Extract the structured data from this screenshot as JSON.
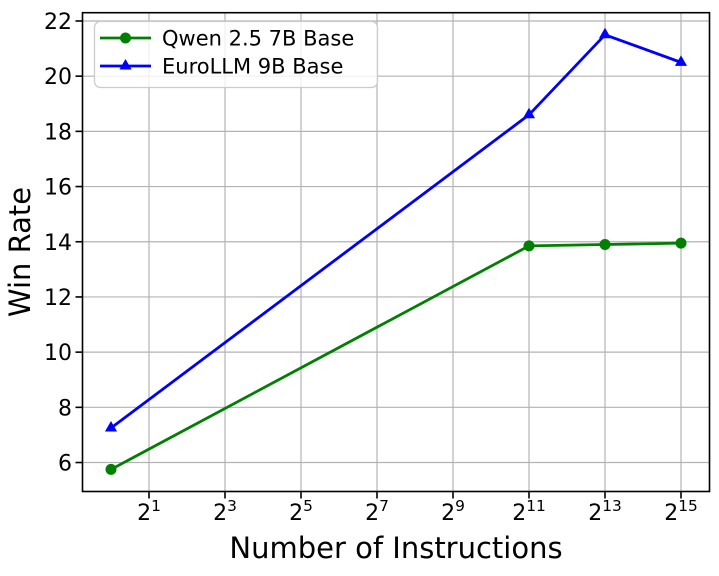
{
  "colors": {
    "background": "#ffffff",
    "grid": "#b3b3b3",
    "spine": "#000000",
    "text": "#000000",
    "legend_border": "#cccccc",
    "legend_fill": "rgba(255,255,255,0.8)"
  },
  "chart_data": {
    "type": "line",
    "title": "",
    "xlabel": "Number of Instructions",
    "ylabel": "Win Rate",
    "x_scale": "log2",
    "grid": true,
    "legend_position": "upper left",
    "x_values": [
      1,
      2048,
      8192,
      32768
    ],
    "series": [
      {
        "name": "Qwen 2.5 7B Base",
        "color": "#008000",
        "marker": "circle",
        "x_exponents": [
          0,
          11,
          13,
          15
        ],
        "values": [
          5.75,
          13.85,
          13.9,
          13.95
        ]
      },
      {
        "name": "EuroLLM 9B Base",
        "color": "#0000ff",
        "marker": "triangle",
        "x_exponents": [
          0,
          11,
          13,
          15
        ],
        "values": [
          7.25,
          18.6,
          21.5,
          20.5
        ]
      }
    ],
    "x_ticks": {
      "base": 2,
      "exponents": [
        1,
        3,
        5,
        7,
        9,
        11,
        13,
        15
      ]
    },
    "y_ticks": [
      6,
      8,
      10,
      12,
      14,
      16,
      18,
      20,
      22
    ],
    "xlim_log2": [
      -0.75,
      15.75
    ],
    "ylim": [
      4.95,
      22.3
    ]
  }
}
